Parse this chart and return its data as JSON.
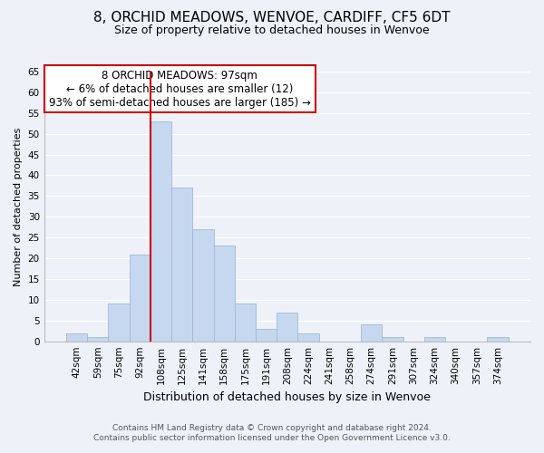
{
  "title": "8, ORCHID MEADOWS, WENVOE, CARDIFF, CF5 6DT",
  "subtitle": "Size of property relative to detached houses in Wenvoe",
  "xlabel": "Distribution of detached houses by size in Wenvoe",
  "ylabel": "Number of detached properties",
  "bar_labels": [
    "42sqm",
    "59sqm",
    "75sqm",
    "92sqm",
    "108sqm",
    "125sqm",
    "141sqm",
    "158sqm",
    "175sqm",
    "191sqm",
    "208sqm",
    "224sqm",
    "241sqm",
    "258sqm",
    "274sqm",
    "291sqm",
    "307sqm",
    "324sqm",
    "340sqm",
    "357sqm",
    "374sqm"
  ],
  "bar_heights": [
    2,
    1,
    9,
    21,
    53,
    37,
    27,
    23,
    9,
    3,
    7,
    2,
    0,
    0,
    4,
    1,
    0,
    1,
    0,
    0,
    1
  ],
  "bar_color": "#c5d8f0",
  "bar_edge_color": "#a0b8d8",
  "vline_x_index": 3.5,
  "vline_color": "#cc0000",
  "ylim": [
    0,
    65
  ],
  "yticks": [
    0,
    5,
    10,
    15,
    20,
    25,
    30,
    35,
    40,
    45,
    50,
    55,
    60,
    65
  ],
  "annotation_line1": "8 ORCHID MEADOWS: 97sqm",
  "annotation_line2": "← 6% of detached houses are smaller (12)",
  "annotation_line3": "93% of semi-detached houses are larger (185) →",
  "annotation_box_edgecolor": "#cc0000",
  "footer_line1": "Contains HM Land Registry data © Crown copyright and database right 2024.",
  "footer_line2": "Contains public sector information licensed under the Open Government Licence v3.0.",
  "background_color": "#eef2f8",
  "grid_color": "#ffffff",
  "title_fontsize": 11,
  "subtitle_fontsize": 9,
  "ylabel_fontsize": 8,
  "xlabel_fontsize": 9,
  "tick_fontsize": 7.5,
  "annotation_fontsize": 8.5,
  "footer_fontsize": 6.5
}
